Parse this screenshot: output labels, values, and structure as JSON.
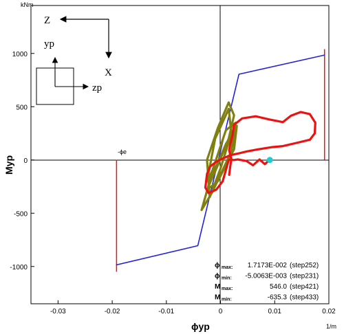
{
  "chart_data": {
    "type": "line",
    "xlabel": "ϕyp",
    "ylabel": "Myp",
    "x_unit": "1/m",
    "y_unit": "kNm",
    "xlim": [
      -0.035,
      0.02
    ],
    "ylim": [
      -1350,
      1450
    ],
    "x_ticks": [
      -0.03,
      -0.02,
      -0.01,
      0,
      0.01,
      0.02
    ],
    "x_tick_labels": [
      "-0.03",
      "-0.02",
      "-0.01",
      "0",
      "0.01",
      "0.02"
    ],
    "y_ticks": [
      -1000,
      -500,
      0,
      500,
      1000
    ],
    "y_tick_labels": [
      "-1000",
      "-500",
      "0",
      "500",
      "1000"
    ],
    "ref_label": "-ϕe",
    "series": [
      {
        "color": "#2020e0",
        "x": [
          -0.0192,
          -0.0042,
          0.0034,
          0.0192
        ],
        "y": [
          -985,
          -805,
          805,
          985
        ]
      },
      {
        "color": "#808010",
        "x": [
          -0.0025,
          -0.0005,
          0.0015,
          0.0025,
          0.0015,
          -0.0005,
          -0.0025,
          -0.002,
          0.0,
          0.002,
          0.0015,
          -0.001,
          -0.0025,
          -0.0015,
          0.001,
          0.0028,
          0.002,
          -0.0015,
          -0.0035,
          -0.002,
          0.001,
          0.003,
          0.0025,
          -0.0005,
          -0.0025
        ],
        "y": [
          -280,
          -50,
          200,
          420,
          540,
          300,
          0,
          -350,
          -80,
          250,
          480,
          200,
          -200,
          -100,
          280,
          350,
          80,
          -300,
          -470,
          -200,
          150,
          320,
          100,
          -200,
          -280
        ]
      },
      {
        "color": "#ee1111",
        "x": [
          0.0016,
          0.0018,
          0.002,
          0.0016,
          0.0018,
          0.0022,
          0.0025,
          0.004,
          0.0065,
          0.009,
          0.0115,
          0.013,
          0.0148,
          0.0165,
          0.0175,
          0.0174,
          0.0165,
          0.014,
          0.0115,
          0.0095,
          0.007,
          0.0048,
          0.0032,
          0.0018,
          0.0007,
          -0.0006,
          -0.0019,
          -0.0025,
          -0.0028,
          -0.0022,
          -0.0008,
          0.0004,
          0.0015,
          0.0025,
          0.0032,
          0.0048,
          0.006,
          0.0072,
          0.0082,
          0.009
        ],
        "y": [
          -140,
          -60,
          10,
          90,
          150,
          230,
          330,
          390,
          410,
          380,
          355,
          415,
          450,
          430,
          350,
          250,
          190,
          160,
          130,
          120,
          100,
          80,
          60,
          45,
          20,
          -10,
          -60,
          -130,
          -260,
          -310,
          -280,
          -200,
          0,
          0,
          5,
          -10,
          -50,
          5,
          -40,
          0
        ]
      }
    ],
    "vlines": [
      {
        "x": -0.0192,
        "y1": 0,
        "y2": -1050,
        "color": "#ee1111"
      },
      {
        "x": 0.0192,
        "y1": 0,
        "y2": 1040,
        "color": "#ee1111"
      }
    ],
    "marker": {
      "x": 0.0091,
      "y": 0,
      "color": "#22cccc"
    },
    "stats": [
      {
        "name": "ϕ",
        "sub": "max",
        "value": "1.7173E-002",
        "step": "(step252)"
      },
      {
        "name": "ϕ",
        "sub": "min",
        "value": "-5.0063E-003",
        "step": "(step231)"
      },
      {
        "name": "M",
        "sub": "max",
        "value": "546.0",
        "step": "(step421)"
      },
      {
        "name": "M",
        "sub": "min",
        "value": "-635.3",
        "step": "(step433)"
      }
    ]
  },
  "axes_glyph": {
    "z": "Z",
    "x": "X",
    "yp": "yp",
    "zp": "zp"
  }
}
